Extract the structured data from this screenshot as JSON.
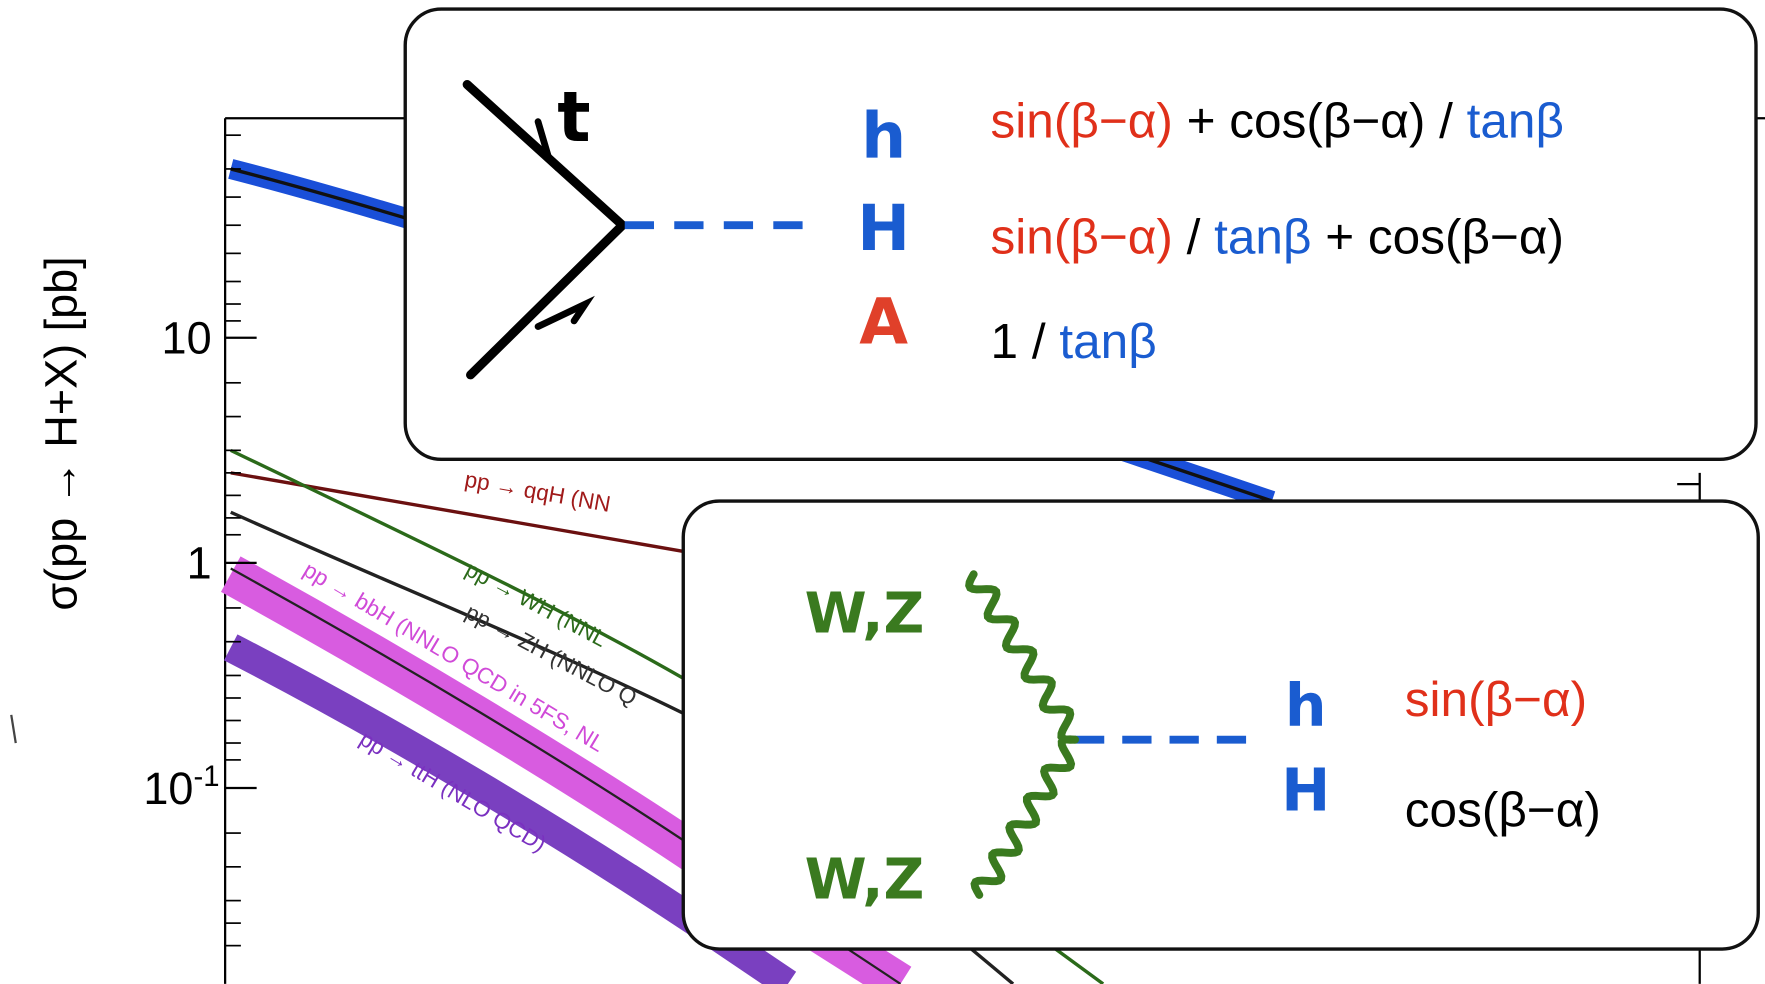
{
  "background_chart": {
    "y_axis_label": "σ(pp → H+X) [pb]",
    "y_tick_labels": [
      "10",
      "1",
      {
        "base": "10",
        "exponent": "-1"
      }
    ],
    "curve_labels": [
      "pp → qqH (NN",
      "pp → WH (NNL",
      "pp → ZH (NNLO Q",
      "pp → bbH (NNLO QCD in 5FS, NL",
      "pp → ttH (NLO QCD)"
    ]
  },
  "box_top": {
    "quark_label": "t",
    "higgs_labels": [
      {
        "text": "h",
        "color": "#1a5cd0"
      },
      {
        "text": "H",
        "color": "#1a5cd0"
      },
      {
        "text": "A",
        "color": "#e0402a"
      }
    ],
    "couplings": [
      [
        {
          "text": "sin(β−α)",
          "color": "#e0301a"
        },
        {
          "text": " + cos(β−α) / ",
          "color": "#000000"
        },
        {
          "text": "tanβ",
          "color": "#1a5cd0"
        }
      ],
      [
        {
          "text": "sin(β−α)",
          "color": "#e0301a"
        },
        {
          "text": " / ",
          "color": "#000000"
        },
        {
          "text": "tanβ",
          "color": "#1a5cd0"
        },
        {
          "text": " + cos(β−α)",
          "color": "#000000"
        }
      ],
      [
        {
          "text": "1 / ",
          "color": "#000000"
        },
        {
          "text": "tanβ",
          "color": "#1a5cd0"
        }
      ]
    ]
  },
  "box_bottom": {
    "boson_labels": [
      "W,Z",
      "W,Z"
    ],
    "higgs_labels": [
      {
        "text": "h",
        "color": "#1a5cd0"
      },
      {
        "text": "H",
        "color": "#1a5cd0"
      }
    ],
    "couplings": [
      [
        {
          "text": "sin(β−α)",
          "color": "#e0301a"
        }
      ],
      [
        {
          "text": "cos(β−α)",
          "color": "#000000"
        }
      ]
    ]
  }
}
